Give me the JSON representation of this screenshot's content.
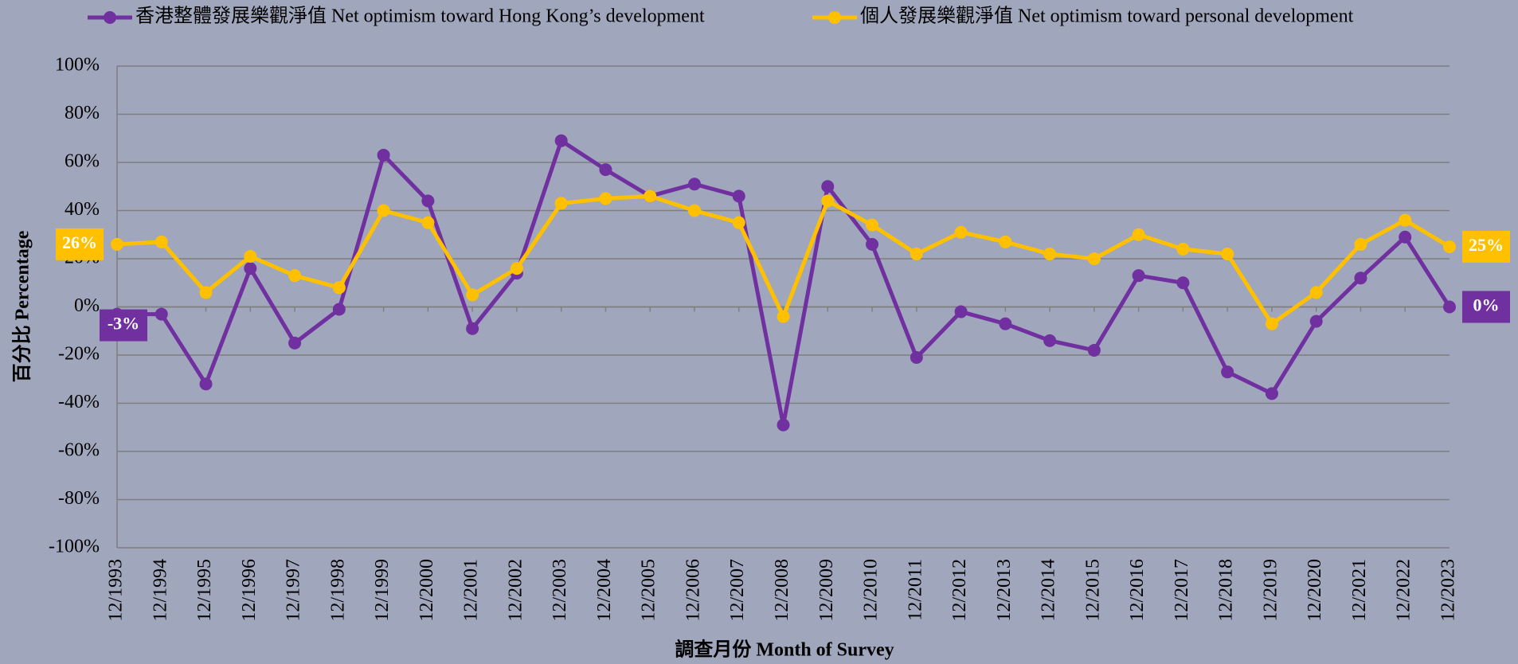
{
  "chart_data": {
    "type": "line",
    "x_label": "調查月份 Month of Survey",
    "y_label": "百分比 Percentage",
    "categories": [
      "12/1993",
      "12/1994",
      "12/1995",
      "12/1996",
      "12/1997",
      "12/1998",
      "12/1999",
      "12/2000",
      "12/2001",
      "12/2002",
      "12/2003",
      "12/2004",
      "12/2005",
      "12/2006",
      "12/2007",
      "12/2008",
      "12/2009",
      "12/2010",
      "12/2011",
      "12/2012",
      "12/2013",
      "12/2014",
      "12/2015",
      "12/2016",
      "12/2017",
      "12/2018",
      "12/2019",
      "12/2020",
      "12/2021",
      "12/2022",
      "12/2023"
    ],
    "series": [
      {
        "name": "香港整體發展樂觀淨值 Net optimism toward Hong Kong’s development",
        "color": "#7030a0",
        "values": [
          -3,
          -3,
          -32,
          16,
          -15,
          -1,
          63,
          44,
          -9,
          14,
          69,
          57,
          46,
          51,
          46,
          -49,
          50,
          26,
          -21,
          -2,
          -7,
          -14,
          -18,
          13,
          10,
          -27,
          -36,
          -6,
          12,
          29,
          0
        ],
        "value_labels": [
          "-3%",
          null,
          null,
          null,
          null,
          null,
          null,
          null,
          null,
          null,
          null,
          null,
          null,
          null,
          null,
          null,
          null,
          null,
          null,
          null,
          null,
          null,
          null,
          null,
          null,
          null,
          null,
          null,
          null,
          null,
          "0%"
        ]
      },
      {
        "name": "個人發展樂觀淨值 Net optimism toward personal development",
        "color": "#ffc000",
        "values": [
          26,
          27,
          6,
          21,
          13,
          8,
          40,
          35,
          5,
          16,
          43,
          45,
          46,
          40,
          35,
          -4,
          44,
          34,
          22,
          31,
          27,
          22,
          20,
          30,
          24,
          22,
          -7,
          6,
          26,
          36,
          25
        ],
        "value_labels": [
          "26%",
          null,
          null,
          null,
          null,
          null,
          null,
          null,
          null,
          null,
          null,
          null,
          null,
          null,
          null,
          null,
          null,
          null,
          null,
          null,
          null,
          null,
          null,
          null,
          null,
          null,
          null,
          null,
          null,
          null,
          "25%"
        ]
      }
    ],
    "ylim": [
      -100,
      100
    ],
    "yticks": [
      {
        "value": -100,
        "label": "-100%"
      },
      {
        "value": -80,
        "label": "-80%"
      },
      {
        "value": -60,
        "label": "-60%"
      },
      {
        "value": -40,
        "label": "-40%"
      },
      {
        "value": -20,
        "label": "-20%"
      },
      {
        "value": 0,
        "label": "0%"
      },
      {
        "value": 20,
        "label": "20%"
      },
      {
        "value": 40,
        "label": "40%"
      },
      {
        "value": 60,
        "label": "60%"
      },
      {
        "value": 80,
        "label": "80%"
      },
      {
        "value": 100,
        "label": "100%"
      }
    ],
    "grid": true
  }
}
